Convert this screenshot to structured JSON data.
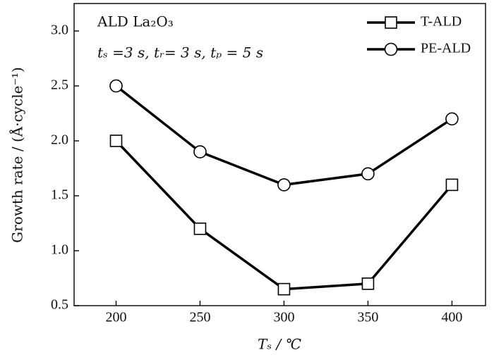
{
  "chart_data": {
    "type": "line",
    "annotations": [
      "ALD La₂O₃",
      "tₛ =3 s, tᵣ= 3 s, tₚ = 5 s"
    ],
    "x_label": "Tₛ / ℃",
    "y_label": "Growth rate / (Å·cycle⁻¹)",
    "x": [
      200,
      250,
      300,
      350,
      400
    ],
    "series": [
      {
        "name": "T-ALD",
        "color": "#000000",
        "marker": "square",
        "values": [
          2.0,
          1.2,
          0.65,
          0.7,
          1.6
        ]
      },
      {
        "name": "PE-ALD",
        "color": "#000000",
        "marker": "circle",
        "values": [
          2.5,
          1.9,
          1.6,
          1.7,
          2.2
        ]
      }
    ],
    "xlim": [
      175,
      420
    ],
    "ylim": [
      0.5,
      3.25
    ],
    "xticks": [
      200,
      250,
      300,
      350,
      400
    ],
    "yticks": [
      0.5,
      {
        "value": 1.0,
        "label": "1.0"
      },
      1.5,
      {
        "value": 2.0,
        "label": "2.0"
      },
      2.5,
      {
        "value": 3.0,
        "label": "3.0"
      }
    ],
    "legend": "upper right"
  }
}
